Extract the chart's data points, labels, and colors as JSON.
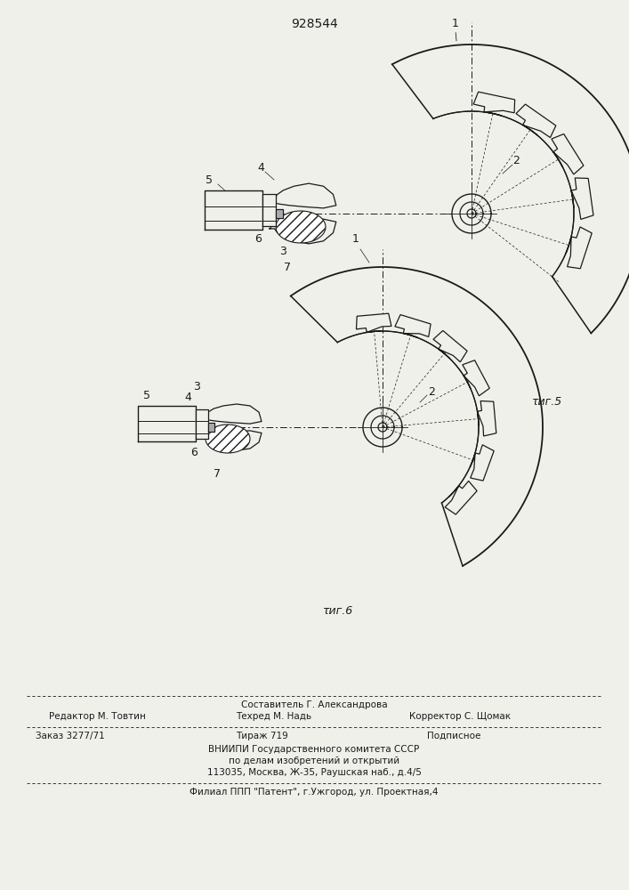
{
  "title": "928544",
  "fig5_label": "τиг.5",
  "fig6_label": "τиг.6",
  "footer_line1": "Составитель Г. Александрова",
  "footer_line2_left": "Редактор М. Товтин",
  "footer_line2_mid": "Техред М. Надь",
  "footer_line2_right": "Корректор С. Щомак",
  "footer_line3_left": "Заказ 3277/71",
  "footer_line3_mid": "Тираж 719",
  "footer_line3_right": "Подписное",
  "footer_line4": "ВНИИПИ Государственного комитета СССР",
  "footer_line5": "по делам изобретений и открытий",
  "footer_line6": "113035, Москва, Ж-35, Раушская наб., д.4/5",
  "footer_last": "Филиал ППП \"Патент\", г.Ужгород, ул. Проектная,4",
  "bg_color": "#f0f0eb",
  "line_color": "#1a1a1a"
}
